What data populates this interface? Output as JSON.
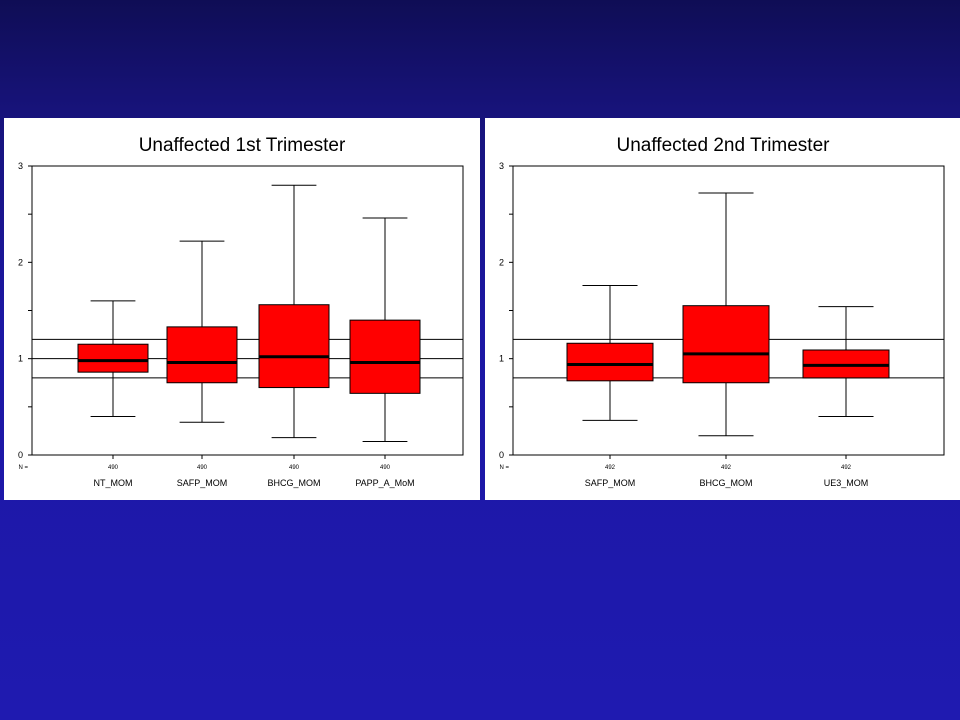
{
  "chart_data": [
    {
      "type": "box",
      "title": "Unaffected 1st Trimester",
      "ylim": [
        0,
        3
      ],
      "yticks": [
        "0",
        "1",
        "2",
        "3"
      ],
      "reference_lines": [
        0.8,
        1.0,
        1.2
      ],
      "n_prefix": "N =",
      "categories": [
        "NT_MOM",
        "SAFP_MOM",
        "BHCG_MOM",
        "PAPP_A_MoM"
      ],
      "n": [
        "490",
        "490",
        "490",
        "490"
      ],
      "boxes": [
        {
          "whisker_low": 0.4,
          "q1": 0.86,
          "median": 0.98,
          "q3": 1.15,
          "whisker_high": 1.6
        },
        {
          "whisker_low": 0.34,
          "q1": 0.75,
          "median": 0.96,
          "q3": 1.33,
          "whisker_high": 2.22
        },
        {
          "whisker_low": 0.18,
          "q1": 0.7,
          "median": 1.02,
          "q3": 1.56,
          "whisker_high": 2.8
        },
        {
          "whisker_low": 0.14,
          "q1": 0.64,
          "median": 0.96,
          "q3": 1.4,
          "whisker_high": 2.46
        }
      ],
      "box_color": "#ff0000",
      "grid": false
    },
    {
      "type": "box",
      "title": "Unaffected 2nd Trimester",
      "ylim": [
        0,
        3
      ],
      "yticks": [
        "0",
        "1",
        "2",
        "3"
      ],
      "reference_lines": [
        0.8,
        1.2
      ],
      "n_prefix": "N =",
      "categories": [
        "SAFP_MOM",
        "BHCG_MOM",
        "UE3_MOM"
      ],
      "n": [
        "492",
        "492",
        "492"
      ],
      "boxes": [
        {
          "whisker_low": 0.36,
          "q1": 0.77,
          "median": 0.94,
          "q3": 1.16,
          "whisker_high": 1.76
        },
        {
          "whisker_low": 0.2,
          "q1": 0.75,
          "median": 1.05,
          "q3": 1.55,
          "whisker_high": 2.72
        },
        {
          "whisker_low": 0.4,
          "q1": 0.8,
          "median": 0.93,
          "q3": 1.09,
          "whisker_high": 1.54
        }
      ],
      "box_color": "#ff0000",
      "grid": false
    }
  ]
}
